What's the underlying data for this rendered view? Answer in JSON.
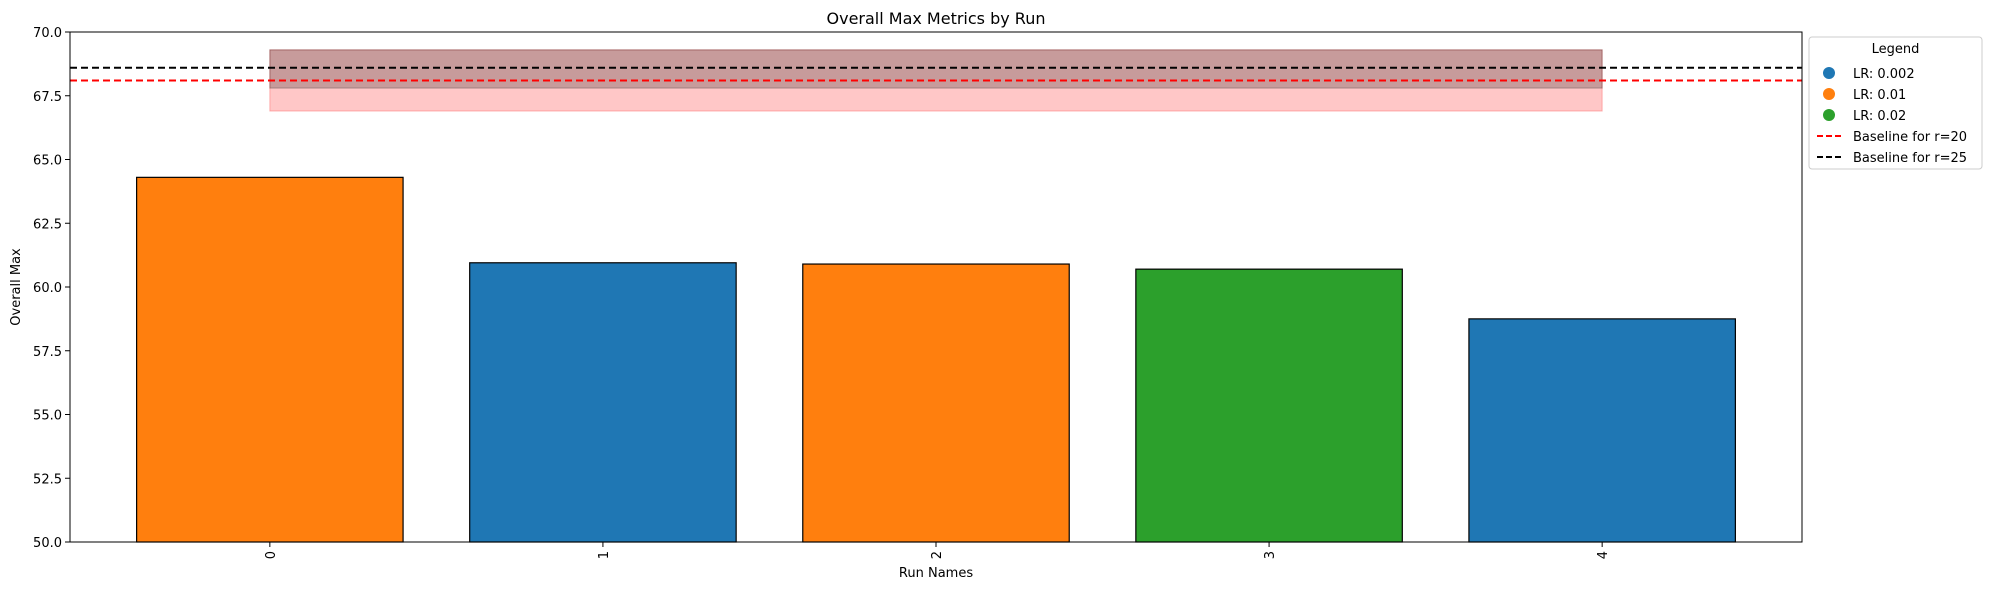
{
  "chart_data": {
    "type": "bar",
    "title": "Overall Max Metrics by Run",
    "xlabel": "Run Names",
    "ylabel": "Overall Max",
    "ylim": [
      50.0,
      70.0
    ],
    "yticks": [
      "50.0",
      "52.5",
      "55.0",
      "57.5",
      "60.0",
      "62.5",
      "65.0",
      "67.5",
      "70.0"
    ],
    "categories": [
      "0",
      "1",
      "2",
      "3",
      "4"
    ],
    "values": [
      64.3,
      60.95,
      60.9,
      60.7,
      58.75
    ],
    "bar_lr": [
      "LR: 0.01",
      "LR: 0.002",
      "LR: 0.01",
      "LR: 0.02",
      "LR: 0.002"
    ],
    "baselines": [
      {
        "name": "Baseline for r=20",
        "value": 68.1,
        "color": "#ff0000",
        "band": [
          66.9,
          69.3
        ]
      },
      {
        "name": "Baseline for r=25",
        "value": 68.6,
        "color": "#000000",
        "band": [
          67.8,
          69.3
        ]
      }
    ],
    "legend": {
      "title": "Legend",
      "placement": "outside-top-right",
      "items": [
        {
          "label": "LR: 0.002",
          "color": "#1f77b4",
          "marker": "dot"
        },
        {
          "label": "LR: 0.01",
          "color": "#ff7f0e",
          "marker": "dot"
        },
        {
          "label": "LR: 0.02",
          "color": "#2ca02c",
          "marker": "dot"
        },
        {
          "label": "Baseline for r=20",
          "color": "#ff0000",
          "marker": "dashed-line"
        },
        {
          "label": "Baseline for r=25",
          "color": "#000000",
          "marker": "dashed-line"
        }
      ]
    },
    "colors": {
      "LR: 0.002": "#1f77b4",
      "LR: 0.01": "#ff7f0e",
      "LR: 0.02": "#2ca02c"
    },
    "grid": false
  }
}
